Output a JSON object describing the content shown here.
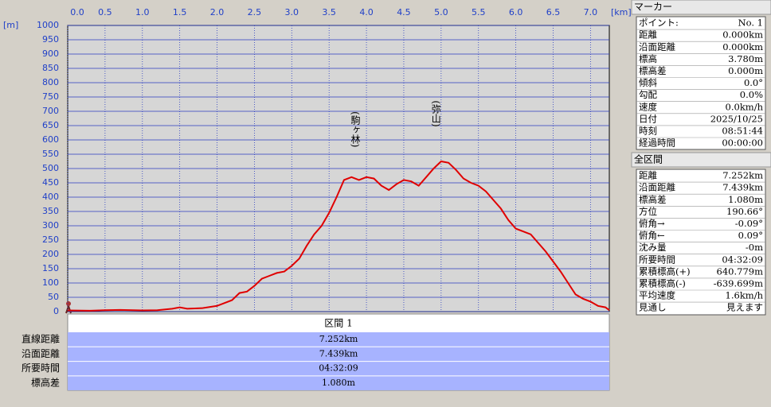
{
  "chart_data": {
    "type": "line",
    "y_unit": "[m]",
    "x_unit": "[km]",
    "x": [
      0,
      0.3,
      0.5,
      0.7,
      1.0,
      1.2,
      1.4,
      1.5,
      1.6,
      1.8,
      2.0,
      2.1,
      2.2,
      2.3,
      2.4,
      2.5,
      2.6,
      2.7,
      2.8,
      2.9,
      3.0,
      3.1,
      3.2,
      3.3,
      3.4,
      3.5,
      3.6,
      3.7,
      3.8,
      3.9,
      4.0,
      4.1,
      4.2,
      4.3,
      4.4,
      4.5,
      4.6,
      4.7,
      4.8,
      4.9,
      5.0,
      5.1,
      5.2,
      5.3,
      5.4,
      5.5,
      5.6,
      5.7,
      5.8,
      5.9,
      6.0,
      6.1,
      6.2,
      6.3,
      6.4,
      6.5,
      6.6,
      6.7,
      6.8,
      6.9,
      7.0,
      7.1,
      7.2,
      7.252
    ],
    "series": [
      {
        "color": "#e00000",
        "values": [
          4,
          3,
          5,
          6,
          4,
          5,
          10,
          15,
          10,
          12,
          20,
          30,
          40,
          65,
          70,
          90,
          115,
          125,
          135,
          140,
          160,
          185,
          230,
          270,
          300,
          345,
          400,
          460,
          470,
          460,
          470,
          465,
          440,
          425,
          445,
          460,
          455,
          440,
          470,
          500,
          525,
          520,
          495,
          465,
          450,
          440,
          420,
          390,
          360,
          320,
          290,
          280,
          270,
          240,
          210,
          175,
          140,
          100,
          60,
          45,
          35,
          20,
          15,
          5
        ]
      }
    ],
    "xlim": [
      0,
      7.252
    ],
    "ylim": [
      0,
      1000
    ],
    "xticks": [
      {
        "value": 0,
        "label": "0.0"
      },
      0.5,
      {
        "value": 1,
        "label": "1.0"
      },
      1.5,
      {
        "value": 2,
        "label": "2.0"
      },
      2.5,
      {
        "value": 3,
        "label": "3.0"
      },
      3.5,
      {
        "value": 4,
        "label": "4.0"
      },
      4.5,
      {
        "value": 5,
        "label": "5.0"
      },
      5.5,
      {
        "value": 6,
        "label": "6.0"
      },
      6.5,
      {
        "value": 7,
        "label": "7.0"
      }
    ],
    "yticks": [
      0,
      50,
      100,
      150,
      200,
      250,
      300,
      350,
      400,
      450,
      500,
      550,
      600,
      650,
      700,
      750,
      800,
      850,
      900,
      950,
      1000
    ],
    "grid": true,
    "annotations": [
      {
        "text": "(駒ヶ林)",
        "x": 3.85,
        "y": 470
      },
      {
        "text": "(弥山)",
        "x": 4.93,
        "y": 525
      }
    ]
  },
  "section_table": {
    "header": "区間 1",
    "rows": [
      [
        "直線距離",
        "7.252km"
      ],
      [
        "沿面距離",
        "7.439km"
      ],
      [
        "所要時間",
        "04:32:09"
      ],
      [
        "標高差",
        "1.080m"
      ]
    ]
  },
  "marker_panel": {
    "title": "マーカー",
    "rows": [
      [
        "ポイント:",
        "No. 1"
      ],
      [
        "距離",
        "0.000km"
      ],
      [
        "沿面距離",
        "0.000km"
      ],
      [
        "標高",
        "3.780m"
      ],
      [
        "標高差",
        "0.000m"
      ],
      [
        "傾斜",
        "0.0°"
      ],
      [
        "勾配",
        "0.0%"
      ],
      [
        "速度",
        "0.0km/h"
      ],
      [
        "日付",
        "2025/10/25"
      ],
      [
        "時刻",
        "08:51:44"
      ],
      [
        "経過時間",
        "00:00:00"
      ]
    ]
  },
  "total_panel": {
    "title": "全区間",
    "rows": [
      [
        "距離",
        "7.252km"
      ],
      [
        "沿面距離",
        "7.439km"
      ],
      [
        "標高差",
        "1.080m"
      ],
      [
        "方位",
        "190.66°"
      ],
      [
        "俯角→",
        "-0.09°"
      ],
      [
        "俯角←",
        "0.09°"
      ],
      [
        "沈み量",
        "-0m"
      ],
      [
        "所要時間",
        "04:32:09"
      ],
      [
        "累積標高(+)",
        "640.779m"
      ],
      [
        "累積標高(-)",
        "-639.699m"
      ],
      [
        "平均速度",
        "1.6km/h"
      ],
      [
        "見通し",
        "見えます"
      ]
    ]
  }
}
